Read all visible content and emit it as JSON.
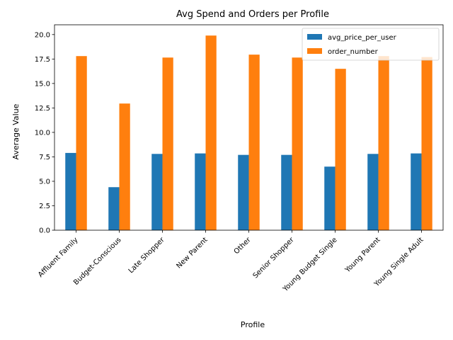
{
  "chart_data": {
    "type": "bar",
    "title": "Avg Spend and Orders per Profile",
    "xlabel": "Profile",
    "ylabel": "Average Value",
    "ylim": [
      0,
      21.0
    ],
    "yticks": [
      0.0,
      2.5,
      5.0,
      7.5,
      10.0,
      12.5,
      15.0,
      17.5,
      20.0
    ],
    "ytick_labels": [
      "0.0",
      "2.5",
      "5.0",
      "7.5",
      "10.0",
      "12.5",
      "15.0",
      "17.5",
      "20.0"
    ],
    "grid": false,
    "legend_position": "top-right",
    "categories": [
      "Affluent Family",
      "Budget-Conscious",
      "Late Shopper",
      "New Parent",
      "Other",
      "Senior Shopper",
      "Young Budget Single",
      "Young Parent",
      "Young Single Adult"
    ],
    "series": [
      {
        "name": "avg_price_per_user",
        "color": "#1f77b4",
        "values": [
          7.9,
          4.4,
          7.8,
          7.85,
          7.7,
          7.7,
          6.5,
          7.8,
          7.85
        ]
      },
      {
        "name": "order_number",
        "color": "#ff7f0e",
        "values": [
          17.8,
          12.95,
          17.65,
          19.9,
          17.95,
          17.65,
          16.5,
          17.8,
          17.7
        ]
      }
    ]
  }
}
